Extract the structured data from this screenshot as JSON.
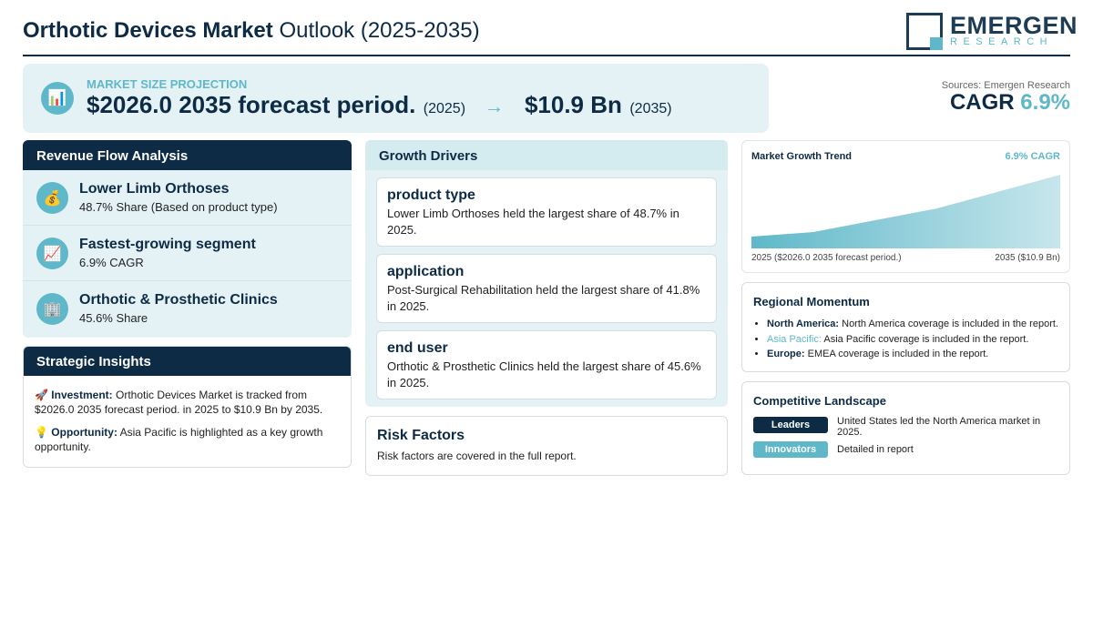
{
  "header": {
    "title_bold": "Orthotic Devices Market",
    "title_light": "Outlook (2025-2035)",
    "logo_word": "EMERGEN",
    "logo_sub": "RESEARCH"
  },
  "projection": {
    "label": "MARKET SIZE PROJECTION",
    "start_value": "$2026.0 2035 forecast period.",
    "start_year": "(2025)",
    "arrow": "→",
    "end_value": "$10.9 Bn",
    "end_year": "(2035)",
    "sources": "Sources: Emergen Research",
    "cagr_label": "CAGR",
    "cagr_value": "6.9%"
  },
  "revenue_flow": {
    "title": "Revenue Flow Analysis",
    "items": [
      {
        "icon": "money-bag-icon",
        "title": "Lower Limb Orthoses",
        "subtitle": "48.7% Share (Based on product type)"
      },
      {
        "icon": "chart-up-icon",
        "title": "Fastest-growing segment",
        "subtitle": "6.9% CAGR"
      },
      {
        "icon": "building-icon",
        "title": "Orthotic & Prosthetic Clinics",
        "subtitle": "45.6% Share"
      }
    ]
  },
  "strategic": {
    "title": "Strategic Insights",
    "investment_label": "Investment:",
    "investment_text": "Orthotic Devices Market is tracked from $2026.0 2035 forecast period. in 2025 to $10.9 Bn by 2035.",
    "opportunity_label": "Opportunity:",
    "opportunity_text": "Asia Pacific is highlighted as a key growth opportunity."
  },
  "drivers": {
    "title": "Growth Drivers",
    "items": [
      {
        "title": "product type",
        "text": "Lower Limb Orthoses held the largest share of 48.7% in 2025."
      },
      {
        "title": "application",
        "text": "Post-Surgical Rehabilitation held the largest share of 41.8% in 2025."
      },
      {
        "title": "end user",
        "text": "Orthotic & Prosthetic Clinics held the largest share of 45.6% in 2025."
      }
    ]
  },
  "risk": {
    "title": "Risk Factors",
    "text": "Risk factors are covered in the full report."
  },
  "trend": {
    "title": "Market Growth Trend",
    "cagr": "6.9% CAGR",
    "left_label": "2025 ($2026.0 2035 forecast period.)",
    "right_label": "2035 ($10.9 Bn)",
    "accent_color": "#5fb8c9"
  },
  "chart_data": {
    "type": "area",
    "title": "Market Growth Trend",
    "x": [
      "2025",
      "2035"
    ],
    "series": [
      {
        "values": [
          0.0,
          1.0
        ]
      }
    ],
    "note": "relative growth curve, no axis values shown"
  },
  "regional": {
    "title": "Regional Momentum",
    "items": [
      {
        "region": "North America:",
        "text": "North America coverage is included in the report."
      },
      {
        "region": "Asia Pacific:",
        "text": "Asia Pacific coverage is included in the report."
      },
      {
        "region": "Europe:",
        "text": "EMEA coverage is included in the report."
      }
    ]
  },
  "competitive": {
    "title": "Competitive Landscape",
    "rows": [
      {
        "badge": "Leaders",
        "text": "United States led the North America market in 2025.",
        "color": "#0d2b45"
      },
      {
        "badge": "Innovators",
        "text": "Detailed in report",
        "color": "#5fb8c9"
      }
    ]
  },
  "colors": {
    "navy": "#0d2b45",
    "teal": "#5fb8c9",
    "panel": "#e4f2f5"
  }
}
